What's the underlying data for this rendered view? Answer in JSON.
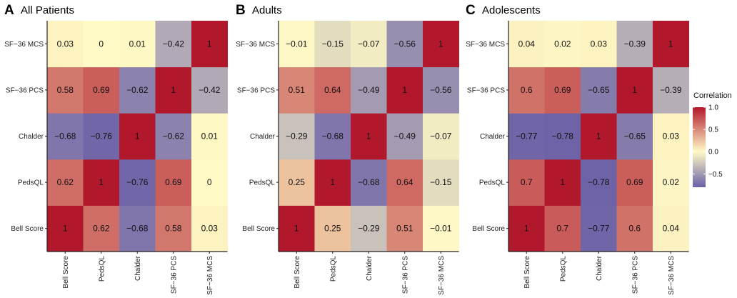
{
  "chart_data": {
    "type": "heatmap",
    "variables": [
      "Bell Score",
      "PedsQL",
      "Chalder",
      "SF-36 PCS",
      "SF-36 MCS"
    ],
    "panels": [
      {
        "letter": "A",
        "title": "All Patients",
        "matrix": [
          [
            1,
            0.62,
            -0.68,
            0.58,
            0.03
          ],
          [
            0.62,
            1,
            -0.76,
            0.69,
            0
          ],
          [
            -0.68,
            -0.76,
            1,
            -0.62,
            0.01
          ],
          [
            0.58,
            0.69,
            -0.62,
            1,
            -0.42
          ],
          [
            0.03,
            0,
            0.01,
            -0.42,
            1
          ]
        ]
      },
      {
        "letter": "B",
        "title": "Adults",
        "matrix": [
          [
            1,
            0.25,
            -0.29,
            0.51,
            -0.01
          ],
          [
            0.25,
            1,
            -0.68,
            0.64,
            -0.15
          ],
          [
            -0.29,
            -0.68,
            1,
            -0.49,
            -0.07
          ],
          [
            0.51,
            0.64,
            -0.49,
            1,
            -0.56
          ],
          [
            -0.01,
            -0.15,
            -0.07,
            -0.56,
            1
          ]
        ]
      },
      {
        "letter": "C",
        "title": "Adolescents",
        "matrix": [
          [
            1,
            0.7,
            -0.77,
            0.6,
            0.04
          ],
          [
            0.7,
            1,
            -0.78,
            0.69,
            0.02
          ],
          [
            -0.77,
            -0.78,
            1,
            -0.65,
            0.03
          ],
          [
            0.6,
            0.69,
            -0.65,
            1,
            -0.39
          ],
          [
            0.04,
            0.02,
            0.03,
            -0.39,
            1
          ]
        ]
      }
    ],
    "legend": {
      "title": "Correlation",
      "ticks": [
        1.0,
        0.5,
        0.0,
        -0.5
      ],
      "tick_labels": [
        "1.0",
        "0.5",
        "0.0",
        "-0.5"
      ],
      "range": [
        -0.8,
        1.0
      ]
    },
    "colors": {
      "low": "#6a5fa6",
      "mid": "#fffac6",
      "high": "#b2182b"
    }
  }
}
